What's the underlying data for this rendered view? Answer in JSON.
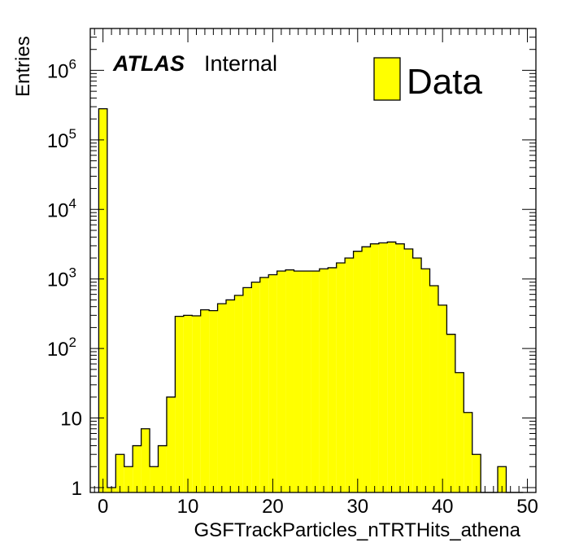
{
  "chart_data": {
    "type": "bar",
    "xlabel": "GSFTrackParticles_nTRTHits_athena",
    "ylabel": "Entries",
    "label_bold": "ATLAS",
    "label_text": "Internal",
    "legend": "Data",
    "fill_color": "#ffff00",
    "edge_color": "#000000",
    "log_y": true,
    "xlim": [
      -1.5,
      51
    ],
    "ylim": [
      0.85,
      4000000
    ],
    "x_ticks": [
      "0",
      "10",
      "20",
      "30",
      "40",
      "50"
    ],
    "y_ticks": [
      "1",
      "10",
      "10^2",
      "10^3",
      "10^4",
      "10^5",
      "10^6"
    ],
    "bin_width": 1,
    "bin_start": -0.5,
    "values": [
      280000,
      1,
      3,
      2,
      4,
      7,
      2,
      4,
      20,
      290,
      300,
      295,
      360,
      350,
      440,
      500,
      580,
      750,
      900,
      1050,
      1150,
      1300,
      1350,
      1300,
      1300,
      1300,
      1400,
      1450,
      1700,
      2000,
      2500,
      2900,
      3200,
      3300,
      3400,
      3200,
      2700,
      2000,
      1400,
      800,
      420,
      160,
      45,
      12,
      3,
      0,
      0,
      2,
      0,
      0
    ]
  }
}
